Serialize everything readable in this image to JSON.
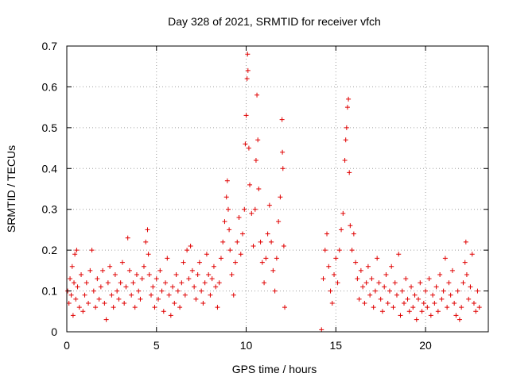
{
  "chart_data": {
    "type": "scatter",
    "title": "Day 328 of 2021, SRMTID for receiver vfch",
    "xlabel": "GPS time / hours",
    "ylabel": "SRMTID / TECUs",
    "xlim": [
      0,
      23.5
    ],
    "ylim": [
      0,
      0.7
    ],
    "xticks": [
      0,
      5,
      10,
      15,
      20
    ],
    "xtick_labels": [
      "0",
      "5",
      "10",
      "15",
      "20"
    ],
    "yticks": [
      0,
      0.1,
      0.2,
      0.3,
      0.4,
      0.5,
      0.6,
      0.7
    ],
    "ytick_labels": [
      "0",
      "0.1",
      "0.2",
      "0.3",
      "0.4",
      "0.5",
      "0.6",
      "0.7"
    ],
    "grid": true,
    "marker": "+",
    "color": "#e00000",
    "series": [
      {
        "name": "SRMTID",
        "points": [
          [
            0.05,
            0.1
          ],
          [
            0.12,
            0.07
          ],
          [
            0.18,
            0.13
          ],
          [
            0.25,
            0.09
          ],
          [
            0.3,
            0.16
          ],
          [
            0.35,
            0.04
          ],
          [
            0.4,
            0.12
          ],
          [
            0.45,
            0.19
          ],
          [
            0.5,
            0.08
          ],
          [
            0.55,
            0.2
          ],
          [
            0.6,
            0.11
          ],
          [
            0.7,
            0.06
          ],
          [
            0.8,
            0.14
          ],
          [
            0.9,
            0.05
          ],
          [
            1.0,
            0.09
          ],
          [
            1.1,
            0.12
          ],
          [
            1.2,
            0.07
          ],
          [
            1.3,
            0.15
          ],
          [
            1.4,
            0.2
          ],
          [
            1.5,
            0.1
          ],
          [
            1.6,
            0.06
          ],
          [
            1.7,
            0.13
          ],
          [
            1.8,
            0.08
          ],
          [
            1.9,
            0.11
          ],
          [
            2.0,
            0.15
          ],
          [
            2.1,
            0.07
          ],
          [
            2.2,
            0.03
          ],
          [
            2.3,
            0.12
          ],
          [
            2.4,
            0.16
          ],
          [
            2.5,
            0.09
          ],
          [
            2.6,
            0.06
          ],
          [
            2.7,
            0.14
          ],
          [
            2.8,
            0.1
          ],
          [
            2.9,
            0.08
          ],
          [
            3.0,
            0.12
          ],
          [
            3.1,
            0.17
          ],
          [
            3.2,
            0.07
          ],
          [
            3.3,
            0.11
          ],
          [
            3.4,
            0.23
          ],
          [
            3.5,
            0.15
          ],
          [
            3.6,
            0.09
          ],
          [
            3.7,
            0.12
          ],
          [
            3.8,
            0.06
          ],
          [
            3.9,
            0.14
          ],
          [
            4.0,
            0.1
          ],
          [
            4.1,
            0.08
          ],
          [
            4.2,
            0.13
          ],
          [
            4.3,
            0.16
          ],
          [
            4.4,
            0.22
          ],
          [
            4.5,
            0.25
          ],
          [
            4.55,
            0.19
          ],
          [
            4.6,
            0.14
          ],
          [
            4.7,
            0.09
          ],
          [
            4.8,
            0.11
          ],
          [
            4.9,
            0.06
          ],
          [
            5.0,
            0.13
          ],
          [
            5.1,
            0.08
          ],
          [
            5.2,
            0.15
          ],
          [
            5.3,
            0.1
          ],
          [
            5.4,
            0.05
          ],
          [
            5.5,
            0.12
          ],
          [
            5.6,
            0.18
          ],
          [
            5.7,
            0.09
          ],
          [
            5.8,
            0.04
          ],
          [
            5.9,
            0.11
          ],
          [
            6.0,
            0.07
          ],
          [
            6.1,
            0.14
          ],
          [
            6.2,
            0.1
          ],
          [
            6.3,
            0.06
          ],
          [
            6.4,
            0.12
          ],
          [
            6.5,
            0.17
          ],
          [
            6.6,
            0.09
          ],
          [
            6.7,
            0.2
          ],
          [
            6.8,
            0.13
          ],
          [
            6.9,
            0.21
          ],
          [
            7.0,
            0.15
          ],
          [
            7.1,
            0.11
          ],
          [
            7.2,
            0.08
          ],
          [
            7.3,
            0.14
          ],
          [
            7.4,
            0.17
          ],
          [
            7.5,
            0.1
          ],
          [
            7.6,
            0.07
          ],
          [
            7.7,
            0.12
          ],
          [
            7.8,
            0.19
          ],
          [
            7.9,
            0.14
          ],
          [
            8.0,
            0.09
          ],
          [
            8.1,
            0.13
          ],
          [
            8.2,
            0.16
          ],
          [
            8.3,
            0.11
          ],
          [
            8.4,
            0.06
          ],
          [
            8.5,
            0.12
          ],
          [
            8.6,
            0.18
          ],
          [
            8.7,
            0.22
          ],
          [
            8.8,
            0.27
          ],
          [
            8.9,
            0.33
          ],
          [
            8.95,
            0.37
          ],
          [
            9.0,
            0.3
          ],
          [
            9.05,
            0.25
          ],
          [
            9.1,
            0.2
          ],
          [
            9.2,
            0.14
          ],
          [
            9.3,
            0.09
          ],
          [
            9.4,
            0.17
          ],
          [
            9.5,
            0.22
          ],
          [
            9.6,
            0.28
          ],
          [
            9.7,
            0.19
          ],
          [
            9.8,
            0.24
          ],
          [
            9.9,
            0.3
          ],
          [
            9.95,
            0.46
          ],
          [
            10.0,
            0.53
          ],
          [
            10.05,
            0.62
          ],
          [
            10.08,
            0.68
          ],
          [
            10.1,
            0.64
          ],
          [
            10.15,
            0.45
          ],
          [
            10.2,
            0.36
          ],
          [
            10.3,
            0.29
          ],
          [
            10.4,
            0.21
          ],
          [
            10.5,
            0.3
          ],
          [
            10.55,
            0.42
          ],
          [
            10.6,
            0.58
          ],
          [
            10.65,
            0.47
          ],
          [
            10.7,
            0.35
          ],
          [
            10.8,
            0.22
          ],
          [
            10.9,
            0.17
          ],
          [
            11.0,
            0.12
          ],
          [
            11.1,
            0.18
          ],
          [
            11.2,
            0.24
          ],
          [
            11.3,
            0.31
          ],
          [
            11.4,
            0.22
          ],
          [
            11.5,
            0.15
          ],
          [
            11.6,
            0.1
          ],
          [
            11.7,
            0.18
          ],
          [
            11.8,
            0.27
          ],
          [
            11.9,
            0.33
          ],
          [
            12.0,
            0.52
          ],
          [
            12.02,
            0.44
          ],
          [
            12.05,
            0.4
          ],
          [
            12.1,
            0.21
          ],
          [
            12.15,
            0.06
          ],
          [
            14.2,
            0.005
          ],
          [
            14.3,
            0.13
          ],
          [
            14.4,
            0.2
          ],
          [
            14.5,
            0.24
          ],
          [
            14.6,
            0.16
          ],
          [
            14.7,
            0.1
          ],
          [
            14.8,
            0.07
          ],
          [
            14.9,
            0.14
          ],
          [
            15.0,
            0.18
          ],
          [
            15.1,
            0.12
          ],
          [
            15.2,
            0.2
          ],
          [
            15.3,
            0.25
          ],
          [
            15.4,
            0.29
          ],
          [
            15.5,
            0.42
          ],
          [
            15.55,
            0.47
          ],
          [
            15.6,
            0.5
          ],
          [
            15.65,
            0.55
          ],
          [
            15.7,
            0.57
          ],
          [
            15.75,
            0.39
          ],
          [
            15.8,
            0.26
          ],
          [
            15.9,
            0.2
          ],
          [
            16.0,
            0.24
          ],
          [
            16.1,
            0.17
          ],
          [
            16.2,
            0.13
          ],
          [
            16.3,
            0.08
          ],
          [
            16.4,
            0.15
          ],
          [
            16.5,
            0.11
          ],
          [
            16.6,
            0.07
          ],
          [
            16.7,
            0.12
          ],
          [
            16.8,
            0.16
          ],
          [
            16.9,
            0.09
          ],
          [
            17.0,
            0.13
          ],
          [
            17.1,
            0.06
          ],
          [
            17.2,
            0.1
          ],
          [
            17.3,
            0.18
          ],
          [
            17.4,
            0.12
          ],
          [
            17.5,
            0.08
          ],
          [
            17.6,
            0.05
          ],
          [
            17.7,
            0.11
          ],
          [
            17.8,
            0.14
          ],
          [
            17.9,
            0.07
          ],
          [
            18.0,
            0.1
          ],
          [
            18.1,
            0.16
          ],
          [
            18.2,
            0.06
          ],
          [
            18.3,
            0.12
          ],
          [
            18.4,
            0.09
          ],
          [
            18.5,
            0.19
          ],
          [
            18.6,
            0.04
          ],
          [
            18.7,
            0.1
          ],
          [
            18.8,
            0.07
          ],
          [
            18.9,
            0.13
          ],
          [
            19.0,
            0.08
          ],
          [
            19.1,
            0.05
          ],
          [
            19.2,
            0.11
          ],
          [
            19.3,
            0.06
          ],
          [
            19.4,
            0.09
          ],
          [
            19.5,
            0.03
          ],
          [
            19.6,
            0.08
          ],
          [
            19.7,
            0.12
          ],
          [
            19.8,
            0.05
          ],
          [
            19.9,
            0.07
          ],
          [
            20.0,
            0.1
          ],
          [
            20.1,
            0.06
          ],
          [
            20.2,
            0.13
          ],
          [
            20.3,
            0.04
          ],
          [
            20.4,
            0.09
          ],
          [
            20.5,
            0.07
          ],
          [
            20.6,
            0.11
          ],
          [
            20.7,
            0.05
          ],
          [
            20.8,
            0.14
          ],
          [
            20.9,
            0.08
          ],
          [
            21.0,
            0.1
          ],
          [
            21.1,
            0.18
          ],
          [
            21.2,
            0.06
          ],
          [
            21.3,
            0.12
          ],
          [
            21.4,
            0.09
          ],
          [
            21.5,
            0.15
          ],
          [
            21.6,
            0.07
          ],
          [
            21.7,
            0.04
          ],
          [
            21.8,
            0.1
          ],
          [
            21.9,
            0.03
          ],
          [
            22.0,
            0.06
          ],
          [
            22.1,
            0.12
          ],
          [
            22.2,
            0.17
          ],
          [
            22.25,
            0.22
          ],
          [
            22.3,
            0.14
          ],
          [
            22.4,
            0.08
          ],
          [
            22.5,
            0.11
          ],
          [
            22.6,
            0.19
          ],
          [
            22.7,
            0.07
          ],
          [
            22.8,
            0.05
          ],
          [
            22.9,
            0.1
          ],
          [
            23.0,
            0.06
          ]
        ]
      }
    ]
  }
}
